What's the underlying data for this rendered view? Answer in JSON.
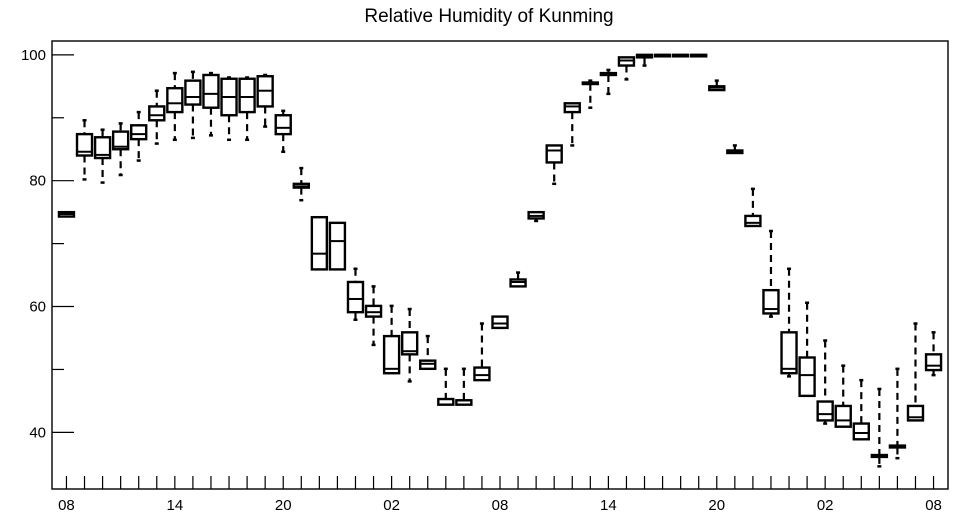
{
  "chart_data": {
    "type": "box",
    "title": "Relative Humidity of Kunming",
    "xlabel": "",
    "ylabel": "",
    "ylim": [
      31,
      102.2
    ],
    "xlim": [
      -0.8,
      48.8
    ],
    "yticks": [
      40,
      60,
      80,
      100
    ],
    "xtick_labels": [
      {
        "x": 0,
        "label": "08"
      },
      {
        "x": 6,
        "label": "14"
      },
      {
        "x": 12,
        "label": "20"
      },
      {
        "x": 18,
        "label": "02"
      },
      {
        "x": 24,
        "label": "08"
      },
      {
        "x": 30,
        "label": "14"
      },
      {
        "x": 36,
        "label": "20"
      },
      {
        "x": 42,
        "label": "02"
      },
      {
        "x": 48,
        "label": "08"
      }
    ],
    "grid": false,
    "boxes": [
      {
        "x": 0,
        "whisker_low": 74.3,
        "q1": 74.3,
        "median": 74.7,
        "q3": 75.0,
        "whisker_high": 75.0
      },
      {
        "x": 1,
        "whisker_low": 80.2,
        "q1": 84.0,
        "median": 84.6,
        "q3": 87.4,
        "whisker_high": 89.6
      },
      {
        "x": 2,
        "whisker_low": 79.7,
        "q1": 83.6,
        "median": 84.1,
        "q3": 86.9,
        "whisker_high": 88.1
      },
      {
        "x": 3,
        "whisker_low": 80.9,
        "q1": 85.0,
        "median": 85.4,
        "q3": 87.8,
        "whisker_high": 89.1
      },
      {
        "x": 4,
        "whisker_low": 83.2,
        "q1": 86.6,
        "median": 87.4,
        "q3": 88.8,
        "whisker_high": 90.9
      },
      {
        "x": 5,
        "whisker_low": 85.9,
        "q1": 89.6,
        "median": 90.4,
        "q3": 91.8,
        "whisker_high": 94.3
      },
      {
        "x": 6,
        "whisker_low": 86.5,
        "q1": 90.9,
        "median": 92.3,
        "q3": 94.7,
        "whisker_high": 97.1
      },
      {
        "x": 7,
        "whisker_low": 86.8,
        "q1": 92.1,
        "median": 93.3,
        "q3": 95.9,
        "whisker_high": 97.3
      },
      {
        "x": 8,
        "whisker_low": 87.2,
        "q1": 91.6,
        "median": 93.8,
        "q3": 96.8,
        "whisker_high": 97.1
      },
      {
        "x": 9,
        "whisker_low": 86.5,
        "q1": 90.4,
        "median": 93.3,
        "q3": 96.2,
        "whisker_high": 96.4
      },
      {
        "x": 10,
        "whisker_low": 86.5,
        "q1": 90.9,
        "median": 93.3,
        "q3": 96.2,
        "whisker_high": 96.4
      },
      {
        "x": 11,
        "whisker_low": 88.6,
        "q1": 91.8,
        "median": 94.3,
        "q3": 96.6,
        "whisker_high": 96.8
      },
      {
        "x": 12,
        "whisker_low": 84.6,
        "q1": 87.4,
        "median": 88.4,
        "q3": 90.4,
        "whisker_high": 91.1
      },
      {
        "x": 13,
        "whisker_low": 76.9,
        "q1": 78.9,
        "median": 79.1,
        "q3": 79.5,
        "whisker_high": 82.0
      },
      {
        "x": 14,
        "whisker_low": 65.9,
        "q1": 65.9,
        "median": 68.4,
        "q3": 74.2,
        "whisker_high": 74.2
      },
      {
        "x": 15,
        "whisker_low": 65.9,
        "q1": 65.9,
        "median": 70.4,
        "q3": 73.3,
        "whisker_high": 73.3
      },
      {
        "x": 16,
        "whisker_low": 57.9,
        "q1": 59.1,
        "median": 61.2,
        "q3": 63.9,
        "whisker_high": 66.0
      },
      {
        "x": 17,
        "whisker_low": 53.9,
        "q1": 58.4,
        "median": 59.1,
        "q3": 60.1,
        "whisker_high": 63.2
      },
      {
        "x": 18,
        "whisker_low": 49.4,
        "q1": 49.4,
        "median": 50.1,
        "q3": 55.3,
        "whisker_high": 60.1
      },
      {
        "x": 19,
        "whisker_low": 48.1,
        "q1": 52.4,
        "median": 52.9,
        "q3": 55.9,
        "whisker_high": 59.6
      },
      {
        "x": 20,
        "whisker_low": 50.1,
        "q1": 50.1,
        "median": 50.9,
        "q3": 51.4,
        "whisker_high": 55.3
      },
      {
        "x": 21,
        "whisker_low": 44.4,
        "q1": 44.4,
        "median": 45.3,
        "q3": 45.3,
        "whisker_high": 50.1
      },
      {
        "x": 22,
        "whisker_low": 44.4,
        "q1": 44.4,
        "median": 45.1,
        "q3": 45.1,
        "whisker_high": 50.1
      },
      {
        "x": 23,
        "whisker_low": 48.3,
        "q1": 48.3,
        "median": 49.1,
        "q3": 50.3,
        "whisker_high": 57.3
      },
      {
        "x": 24,
        "whisker_low": 56.6,
        "q1": 56.6,
        "median": 57.3,
        "q3": 58.4,
        "whisker_high": 58.4
      },
      {
        "x": 25,
        "whisker_low": 63.2,
        "q1": 63.2,
        "median": 63.9,
        "q3": 64.3,
        "whisker_high": 65.4
      },
      {
        "x": 26,
        "whisker_low": 73.6,
        "q1": 74.0,
        "median": 74.4,
        "q3": 75.0,
        "whisker_high": 75.0
      },
      {
        "x": 27,
        "whisker_low": 79.5,
        "q1": 82.9,
        "median": 84.8,
        "q3": 85.6,
        "whisker_high": 85.6
      },
      {
        "x": 28,
        "whisker_low": 85.6,
        "q1": 90.9,
        "median": 91.8,
        "q3": 92.3,
        "whisker_high": 92.3
      },
      {
        "x": 29,
        "whisker_low": 91.6,
        "q1": 95.4,
        "median": 95.6,
        "q3": 95.6,
        "whisker_high": 95.9
      },
      {
        "x": 30,
        "whisker_low": 93.8,
        "q1": 96.8,
        "median": 97.1,
        "q3": 97.1,
        "whisker_high": 97.6
      },
      {
        "x": 31,
        "whisker_low": 96.1,
        "q1": 98.3,
        "median": 99.1,
        "q3": 99.6,
        "whisker_high": 99.6
      },
      {
        "x": 32,
        "whisker_low": 98.3,
        "q1": 99.6,
        "median": 99.8,
        "q3": 100.0,
        "whisker_high": 100.0
      },
      {
        "x": 33,
        "whisker_low": 100.0,
        "q1": 100.0,
        "median": 100.0,
        "q3": 100.0,
        "whisker_high": 100.0
      },
      {
        "x": 34,
        "whisker_low": 100.0,
        "q1": 100.0,
        "median": 100.0,
        "q3": 100.0,
        "whisker_high": 100.0
      },
      {
        "x": 35,
        "whisker_low": 100.0,
        "q1": 100.0,
        "median": 100.0,
        "q3": 100.0,
        "whisker_high": 100.0
      },
      {
        "x": 36,
        "whisker_low": 94.4,
        "q1": 94.4,
        "median": 94.8,
        "q3": 95.0,
        "whisker_high": 95.9
      },
      {
        "x": 37,
        "whisker_low": 84.4,
        "q1": 84.4,
        "median": 84.6,
        "q3": 84.8,
        "whisker_high": 85.6
      },
      {
        "x": 38,
        "whisker_low": 72.8,
        "q1": 72.8,
        "median": 73.3,
        "q3": 74.4,
        "whisker_high": 78.7
      },
      {
        "x": 39,
        "whisker_low": 58.4,
        "q1": 58.9,
        "median": 59.6,
        "q3": 62.6,
        "whisker_high": 72.0
      },
      {
        "x": 40,
        "whisker_low": 48.9,
        "q1": 49.4,
        "median": 50.1,
        "q3": 55.9,
        "whisker_high": 66.0
      },
      {
        "x": 41,
        "whisker_low": 45.8,
        "q1": 45.8,
        "median": 49.1,
        "q3": 51.9,
        "whisker_high": 60.6
      },
      {
        "x": 42,
        "whisker_low": 41.4,
        "q1": 41.9,
        "median": 42.9,
        "q3": 44.9,
        "whisker_high": 54.6
      },
      {
        "x": 43,
        "whisker_low": 40.9,
        "q1": 40.9,
        "median": 41.9,
        "q3": 44.2,
        "whisker_high": 50.6
      },
      {
        "x": 44,
        "whisker_low": 38.9,
        "q1": 38.9,
        "median": 39.9,
        "q3": 41.4,
        "whisker_high": 48.3
      },
      {
        "x": 45,
        "whisker_low": 34.6,
        "q1": 36.1,
        "median": 36.4,
        "q3": 36.4,
        "whisker_high": 46.9
      },
      {
        "x": 46,
        "whisker_low": 35.9,
        "q1": 37.6,
        "median": 37.9,
        "q3": 37.9,
        "whisker_high": 50.1
      },
      {
        "x": 47,
        "whisker_low": 41.9,
        "q1": 41.9,
        "median": 42.4,
        "q3": 44.2,
        "whisker_high": 57.3
      },
      {
        "x": 48,
        "whisker_low": 49.1,
        "q1": 49.9,
        "median": 50.6,
        "q3": 52.4,
        "whisker_high": 55.9
      }
    ]
  }
}
